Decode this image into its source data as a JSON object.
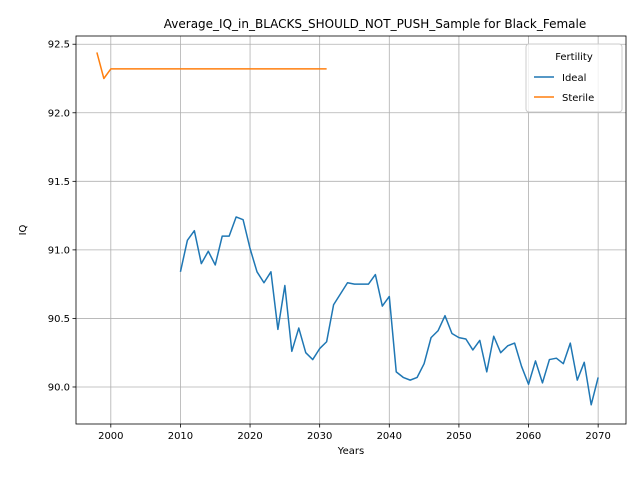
{
  "chart_data": {
    "type": "line",
    "title": "Average_IQ_in_BLACKS_SHOULD_NOT_PUSH_Sample for Black_Female",
    "xlabel": "Years",
    "ylabel": "IQ",
    "xlim": [
      1995,
      2074
    ],
    "ylim": [
      89.73,
      92.56
    ],
    "x_ticks": [
      2000,
      2010,
      2020,
      2030,
      2040,
      2050,
      2060,
      2070
    ],
    "y_ticks": [
      90.0,
      90.5,
      91.0,
      91.5,
      92.0,
      92.5
    ],
    "x_tick_labels": [
      "2000",
      "2010",
      "2020",
      "2030",
      "2040",
      "2050",
      "2060",
      "2070"
    ],
    "y_tick_labels": [
      "90.0",
      "90.5",
      "91.0",
      "91.5",
      "92.0",
      "92.5"
    ],
    "grid": true,
    "legend": {
      "title": "Fertility",
      "placement": "top-right"
    },
    "series": [
      {
        "name": "Ideal",
        "color": "#1f77b4",
        "points": [
          [
            2010,
            90.84
          ],
          [
            2011,
            91.07
          ],
          [
            2012,
            91.14
          ],
          [
            2013,
            90.9
          ],
          [
            2014,
            90.99
          ],
          [
            2015,
            90.89
          ],
          [
            2016,
            91.1
          ],
          [
            2017,
            91.1
          ],
          [
            2018,
            91.24
          ],
          [
            2019,
            91.22
          ],
          [
            2020,
            91.01
          ],
          [
            2021,
            90.84
          ],
          [
            2022,
            90.76
          ],
          [
            2023,
            90.84
          ],
          [
            2024,
            90.42
          ],
          [
            2025,
            90.74
          ],
          [
            2026,
            90.26
          ],
          [
            2027,
            90.43
          ],
          [
            2028,
            90.25
          ],
          [
            2029,
            90.2
          ],
          [
            2030,
            90.28
          ],
          [
            2031,
            90.33
          ],
          [
            2032,
            90.6
          ],
          [
            2033,
            90.68
          ],
          [
            2034,
            90.76
          ],
          [
            2035,
            90.75
          ],
          [
            2036,
            90.75
          ],
          [
            2037,
            90.75
          ],
          [
            2038,
            90.82
          ],
          [
            2039,
            90.59
          ],
          [
            2040,
            90.66
          ],
          [
            2041,
            90.11
          ],
          [
            2042,
            90.07
          ],
          [
            2043,
            90.05
          ],
          [
            2044,
            90.07
          ],
          [
            2045,
            90.17
          ],
          [
            2046,
            90.36
          ],
          [
            2047,
            90.41
          ],
          [
            2048,
            90.52
          ],
          [
            2049,
            90.39
          ],
          [
            2050,
            90.36
          ],
          [
            2051,
            90.35
          ],
          [
            2052,
            90.27
          ],
          [
            2053,
            90.34
          ],
          [
            2054,
            90.11
          ],
          [
            2055,
            90.37
          ],
          [
            2056,
            90.25
          ],
          [
            2057,
            90.3
          ],
          [
            2058,
            90.32
          ],
          [
            2059,
            90.15
          ],
          [
            2060,
            90.02
          ],
          [
            2061,
            90.19
          ],
          [
            2062,
            90.03
          ],
          [
            2063,
            90.2
          ],
          [
            2064,
            90.21
          ],
          [
            2065,
            90.17
          ],
          [
            2066,
            90.32
          ],
          [
            2067,
            90.05
          ],
          [
            2068,
            90.18
          ],
          [
            2069,
            89.87
          ],
          [
            2070,
            90.07
          ]
        ]
      },
      {
        "name": "Sterile",
        "color": "#ff7f0e",
        "points": [
          [
            1998,
            92.44
          ],
          [
            1999,
            92.25
          ],
          [
            2000,
            92.32
          ],
          [
            2001,
            92.32
          ],
          [
            2005,
            92.32
          ],
          [
            2010,
            92.32
          ],
          [
            2015,
            92.32
          ],
          [
            2020,
            92.32
          ],
          [
            2025,
            92.32
          ],
          [
            2030,
            92.32
          ],
          [
            2031,
            92.32
          ]
        ]
      }
    ]
  }
}
